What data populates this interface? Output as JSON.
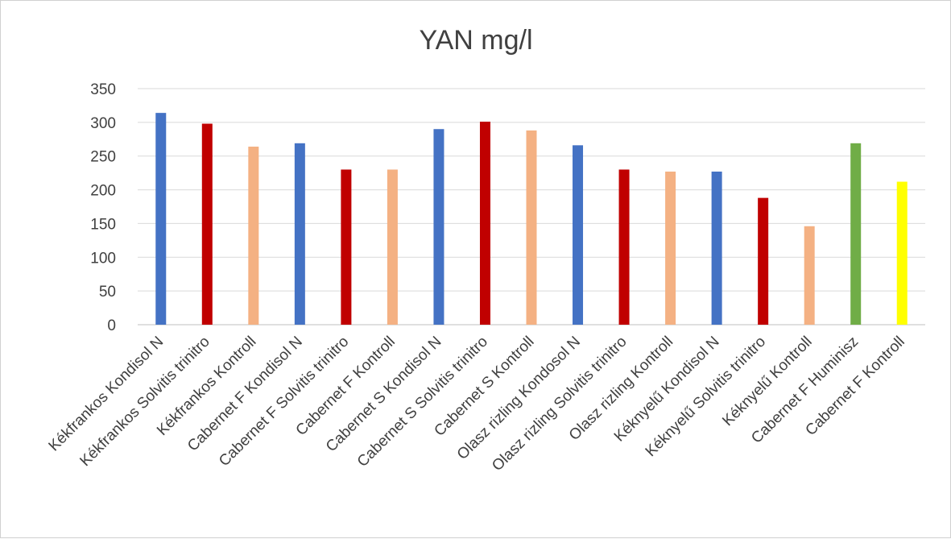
{
  "chart_data": {
    "type": "bar",
    "title": "YAN mg/l",
    "xlabel": "",
    "ylabel": "",
    "ylim": [
      0,
      350
    ],
    "yticks": [
      0,
      50,
      100,
      150,
      200,
      250,
      300,
      350
    ],
    "grid": true,
    "legend": "none",
    "categories": [
      "Kékfrankos Kondisol N",
      "Kékfrankos Solvitis trinitro",
      "Kékfrankos Kontroll",
      "Cabernet F Kondisol N",
      "Cabernet F Solvitis trinitro",
      "Cabernet F Kontroll",
      "Cabernet S Kondisol N",
      "Cabernet S Solvitis trinitro",
      "Cabernet S Kontroll",
      "Olasz rizling Kondosol N",
      "Olasz rizling Solvitis trinitro",
      "Olasz rizling Kontroll",
      "Kéknyelű Kondisol N",
      "Kéknyelű Solvitis trinitro",
      "Kéknyelű Kontroll",
      "Cabernet F Huminisz",
      "Cabernet F Kontroll"
    ],
    "values": [
      314,
      298,
      264,
      269,
      230,
      230,
      290,
      301,
      288,
      266,
      230,
      227,
      227,
      188,
      146,
      269,
      212
    ],
    "colors": [
      "#4472c4",
      "#c00000",
      "#f4b183",
      "#4472c4",
      "#c00000",
      "#f4b183",
      "#4472c4",
      "#c00000",
      "#f4b183",
      "#4472c4",
      "#c00000",
      "#f4b183",
      "#4472c4",
      "#c00000",
      "#f4b183",
      "#70ad47",
      "#ffff00"
    ]
  }
}
